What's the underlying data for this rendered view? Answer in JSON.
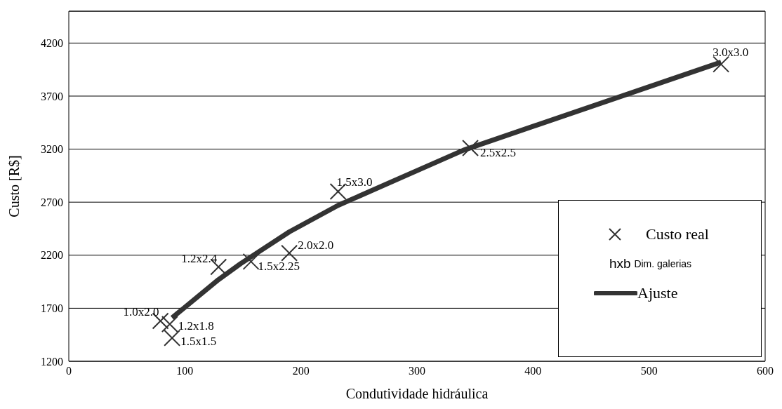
{
  "chart_data": {
    "type": "scatter",
    "xlabel": "Condutividade hidráulica",
    "ylabel": "Custo [R$]",
    "xlim": [
      0,
      600
    ],
    "xticks": [
      0,
      100,
      200,
      300,
      400,
      500,
      600
    ],
    "ylim": [
      1200,
      4500
    ],
    "yticks": [
      1200,
      1700,
      2200,
      2700,
      3200,
      3700,
      4200
    ],
    "grid": "y",
    "legend": "bottom right",
    "annotations": [
      "hxb Dim. galerias"
    ],
    "series": [
      {
        "name": "Custo real",
        "marker": "cross",
        "color": "#333333",
        "x": [
          79,
          87,
          89,
          129,
          157,
          190,
          232,
          346,
          562
        ],
        "values": [
          1580,
          1550,
          1420,
          2090,
          2140,
          2220,
          2800,
          3210,
          4000
        ],
        "value_labels": [
          "1.0x2.0",
          "1.2x1.8",
          "1.5x1.5",
          "1.2x2.4",
          "1.5x2.25",
          "2.0x2.0",
          "1.5x3.0",
          "2.5x2.5",
          "3.0x3.0"
        ]
      },
      {
        "name": "Ajuste",
        "type": "line",
        "marker": "none",
        "color": "#333333",
        "line_style": "solid",
        "x": [
          89,
          129,
          148,
          190,
          232,
          340,
          562
        ],
        "values": [
          1610,
          1970,
          2120,
          2420,
          2670,
          3190,
          4020
        ]
      }
    ]
  }
}
